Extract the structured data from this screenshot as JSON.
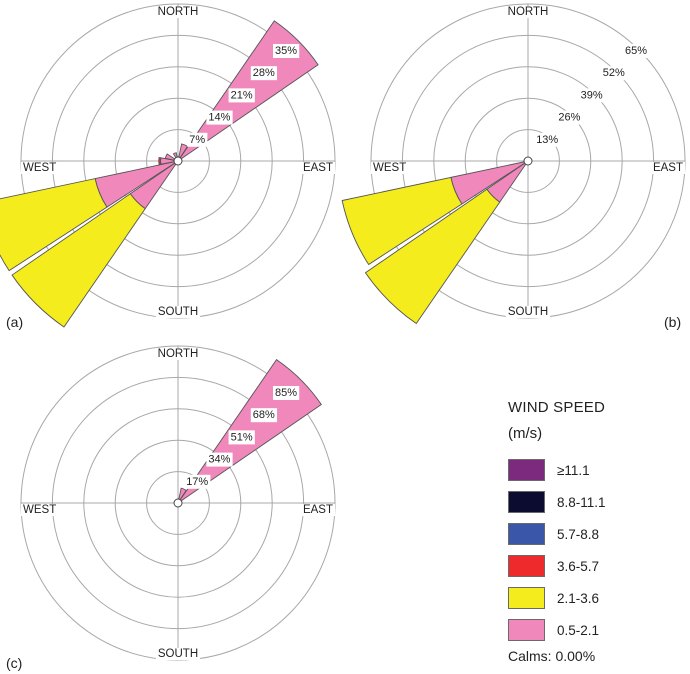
{
  "chart_data": [
    {
      "type": "wind-rose",
      "panel_label": "(a)",
      "directions": {
        "north": "NORTH",
        "south": "SOUTH",
        "east": "EAST",
        "west": "WEST"
      },
      "ring_values": [
        7,
        14,
        21,
        28,
        35
      ],
      "ring_labels": [
        "7%",
        "14%",
        "21%",
        "28%",
        "35%"
      ],
      "petals": [
        {
          "direction_deg": 22.5,
          "bands": [
            {
              "speed": "0.5-2.1",
              "percent": 3
            }
          ]
        },
        {
          "direction_deg": 45,
          "bands": [
            {
              "speed": "0.5-2.1",
              "percent": 37
            }
          ]
        },
        {
          "direction_deg": 225,
          "bands": [
            {
              "speed": "0.5-2.1",
              "percent": 12
            },
            {
              "speed": "2.1-3.6",
              "percent": 32
            }
          ]
        },
        {
          "direction_deg": 247.5,
          "bands": [
            {
              "speed": "0.5-2.1",
              "percent": 18
            },
            {
              "speed": "2.1-3.6",
              "percent": 26
            }
          ]
        },
        {
          "direction_deg": 270,
          "bands": [
            {
              "speed": "0.5-2.1",
              "percent": 3
            },
            {
              "speed": "3.6-5.7",
              "percent": 0.4
            }
          ]
        },
        {
          "direction_deg": 292.5,
          "bands": [
            {
              "speed": "0.5-2.1",
              "percent": 2
            }
          ]
        },
        {
          "direction_deg": 337.5,
          "bands": [
            {
              "speed": "0.5-2.1",
              "percent": 1
            }
          ]
        }
      ]
    },
    {
      "type": "wind-rose",
      "panel_label": "(b)",
      "directions": {
        "north": "NORTH",
        "south": "SOUTH",
        "east": "EAST",
        "west": "WEST"
      },
      "ring_values": [
        13,
        26,
        39,
        52,
        65
      ],
      "ring_labels": [
        "13%",
        "26%",
        "39%",
        "52%",
        "65%"
      ],
      "petals": [
        {
          "direction_deg": 225,
          "bands": [
            {
              "speed": "0.5-2.1",
              "percent": 19
            },
            {
              "speed": "2.1-3.6",
              "percent": 61
            }
          ]
        },
        {
          "direction_deg": 247.5,
          "bands": [
            {
              "speed": "0.5-2.1",
              "percent": 31
            },
            {
              "speed": "2.1-3.6",
              "percent": 46
            }
          ]
        }
      ]
    },
    {
      "type": "wind-rose",
      "panel_label": "(c)",
      "directions": {
        "north": "NORTH",
        "south": "SOUTH",
        "east": "EAST",
        "west": "WEST"
      },
      "ring_values": [
        17,
        34,
        51,
        68,
        85
      ],
      "ring_labels": [
        "17%",
        "34%",
        "51%",
        "68%",
        "85%"
      ],
      "petals": [
        {
          "direction_deg": 22.5,
          "bands": [
            {
              "speed": "0.5-2.1",
              "percent": 6
            }
          ]
        },
        {
          "direction_deg": 45,
          "bands": [
            {
              "speed": "0.5-2.1",
              "percent": 92
            }
          ]
        }
      ]
    }
  ],
  "legend": {
    "title": "WIND SPEED",
    "units": "(m/s)",
    "items": [
      {
        "label": "≥11.1",
        "color": "#7b2a7d"
      },
      {
        "label": "8.8-11.1",
        "color": "#0c0c30"
      },
      {
        "label": "5.7-8.8",
        "color": "#3a56a8"
      },
      {
        "label": "3.6-5.7",
        "color": "#ee2a2c"
      },
      {
        "label": "2.1-3.6",
        "color": "#f4ec1c"
      },
      {
        "label": "0.5-2.1",
        "color": "#f088bc"
      }
    ],
    "calms": "Calms: 0.00%"
  }
}
